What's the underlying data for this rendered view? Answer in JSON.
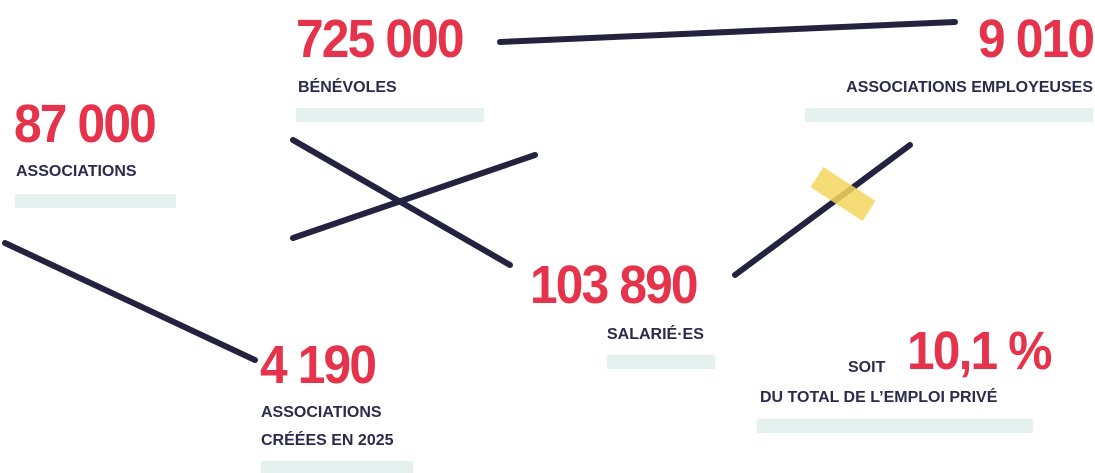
{
  "stats": [
    {
      "number": "725 000",
      "label": "BÉNÉVOLES"
    },
    {
      "number": "9 010",
      "label": "ASSOCIATIONS EMPLOYEUSES"
    },
    {
      "number": "87 000",
      "label": "ASSOCIATIONS"
    },
    {
      "number": "103 890",
      "label": "SALARIÉ·ES"
    },
    {
      "prefix": "SOIT",
      "number": "10,1 %",
      "label": "DU TOTAL DE L’EMPLOI PRIVÉ"
    },
    {
      "number": "4 190",
      "label_lines": [
        "ASSOCIATIONS",
        "CRÉÉES EN 2025"
      ]
    }
  ]
}
